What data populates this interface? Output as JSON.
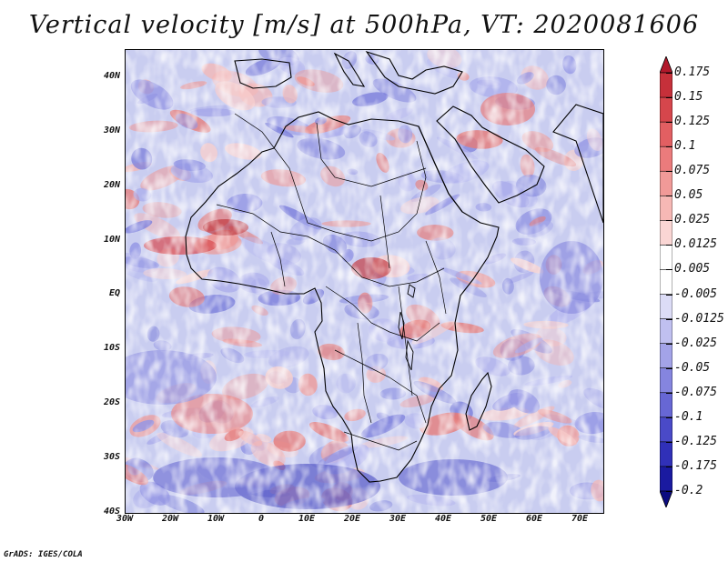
{
  "title": "Vertical velocity [m/s] at 500hPa, VT: 2020081606",
  "footer": "GrADS: IGES/COLA",
  "map": {
    "lon_range": [
      -30,
      75
    ],
    "lat_range": [
      -40,
      45
    ],
    "lat_labels": [
      "40N",
      "30N",
      "20N",
      "10N",
      "EQ",
      "10S",
      "20S",
      "30S",
      "40S"
    ],
    "lat_values": [
      40,
      30,
      20,
      10,
      0,
      -10,
      -20,
      -30,
      -40
    ],
    "lon_labels": [
      "30W",
      "20W",
      "10W",
      "0",
      "10E",
      "20E",
      "30E",
      "40E",
      "50E",
      "60E",
      "70E"
    ],
    "lon_values": [
      -30,
      -20,
      -10,
      0,
      10,
      20,
      30,
      40,
      50,
      60,
      70
    ]
  },
  "colorbar": {
    "labels": [
      "0.175",
      "0.15",
      "0.125",
      "0.1",
      "0.075",
      "0.05",
      "0.025",
      "0.0125",
      "0.005",
      "-0.005",
      "-0.0125",
      "-0.025",
      "-0.05",
      "-0.075",
      "-0.1",
      "-0.125",
      "-0.175",
      "-0.2"
    ],
    "colors": [
      "#b2182b",
      "#c6303a",
      "#d6464c",
      "#e25f62",
      "#eb7b7c",
      "#f19a98",
      "#f6b8b5",
      "#fad6d4",
      "#ffffff",
      "#ffffff",
      "#dcdcf6",
      "#c0c0f0",
      "#a3a3e8",
      "#8585df",
      "#6767d4",
      "#4a4ac8",
      "#3030b8",
      "#1a1aa0",
      "#0c0c80"
    ]
  }
}
